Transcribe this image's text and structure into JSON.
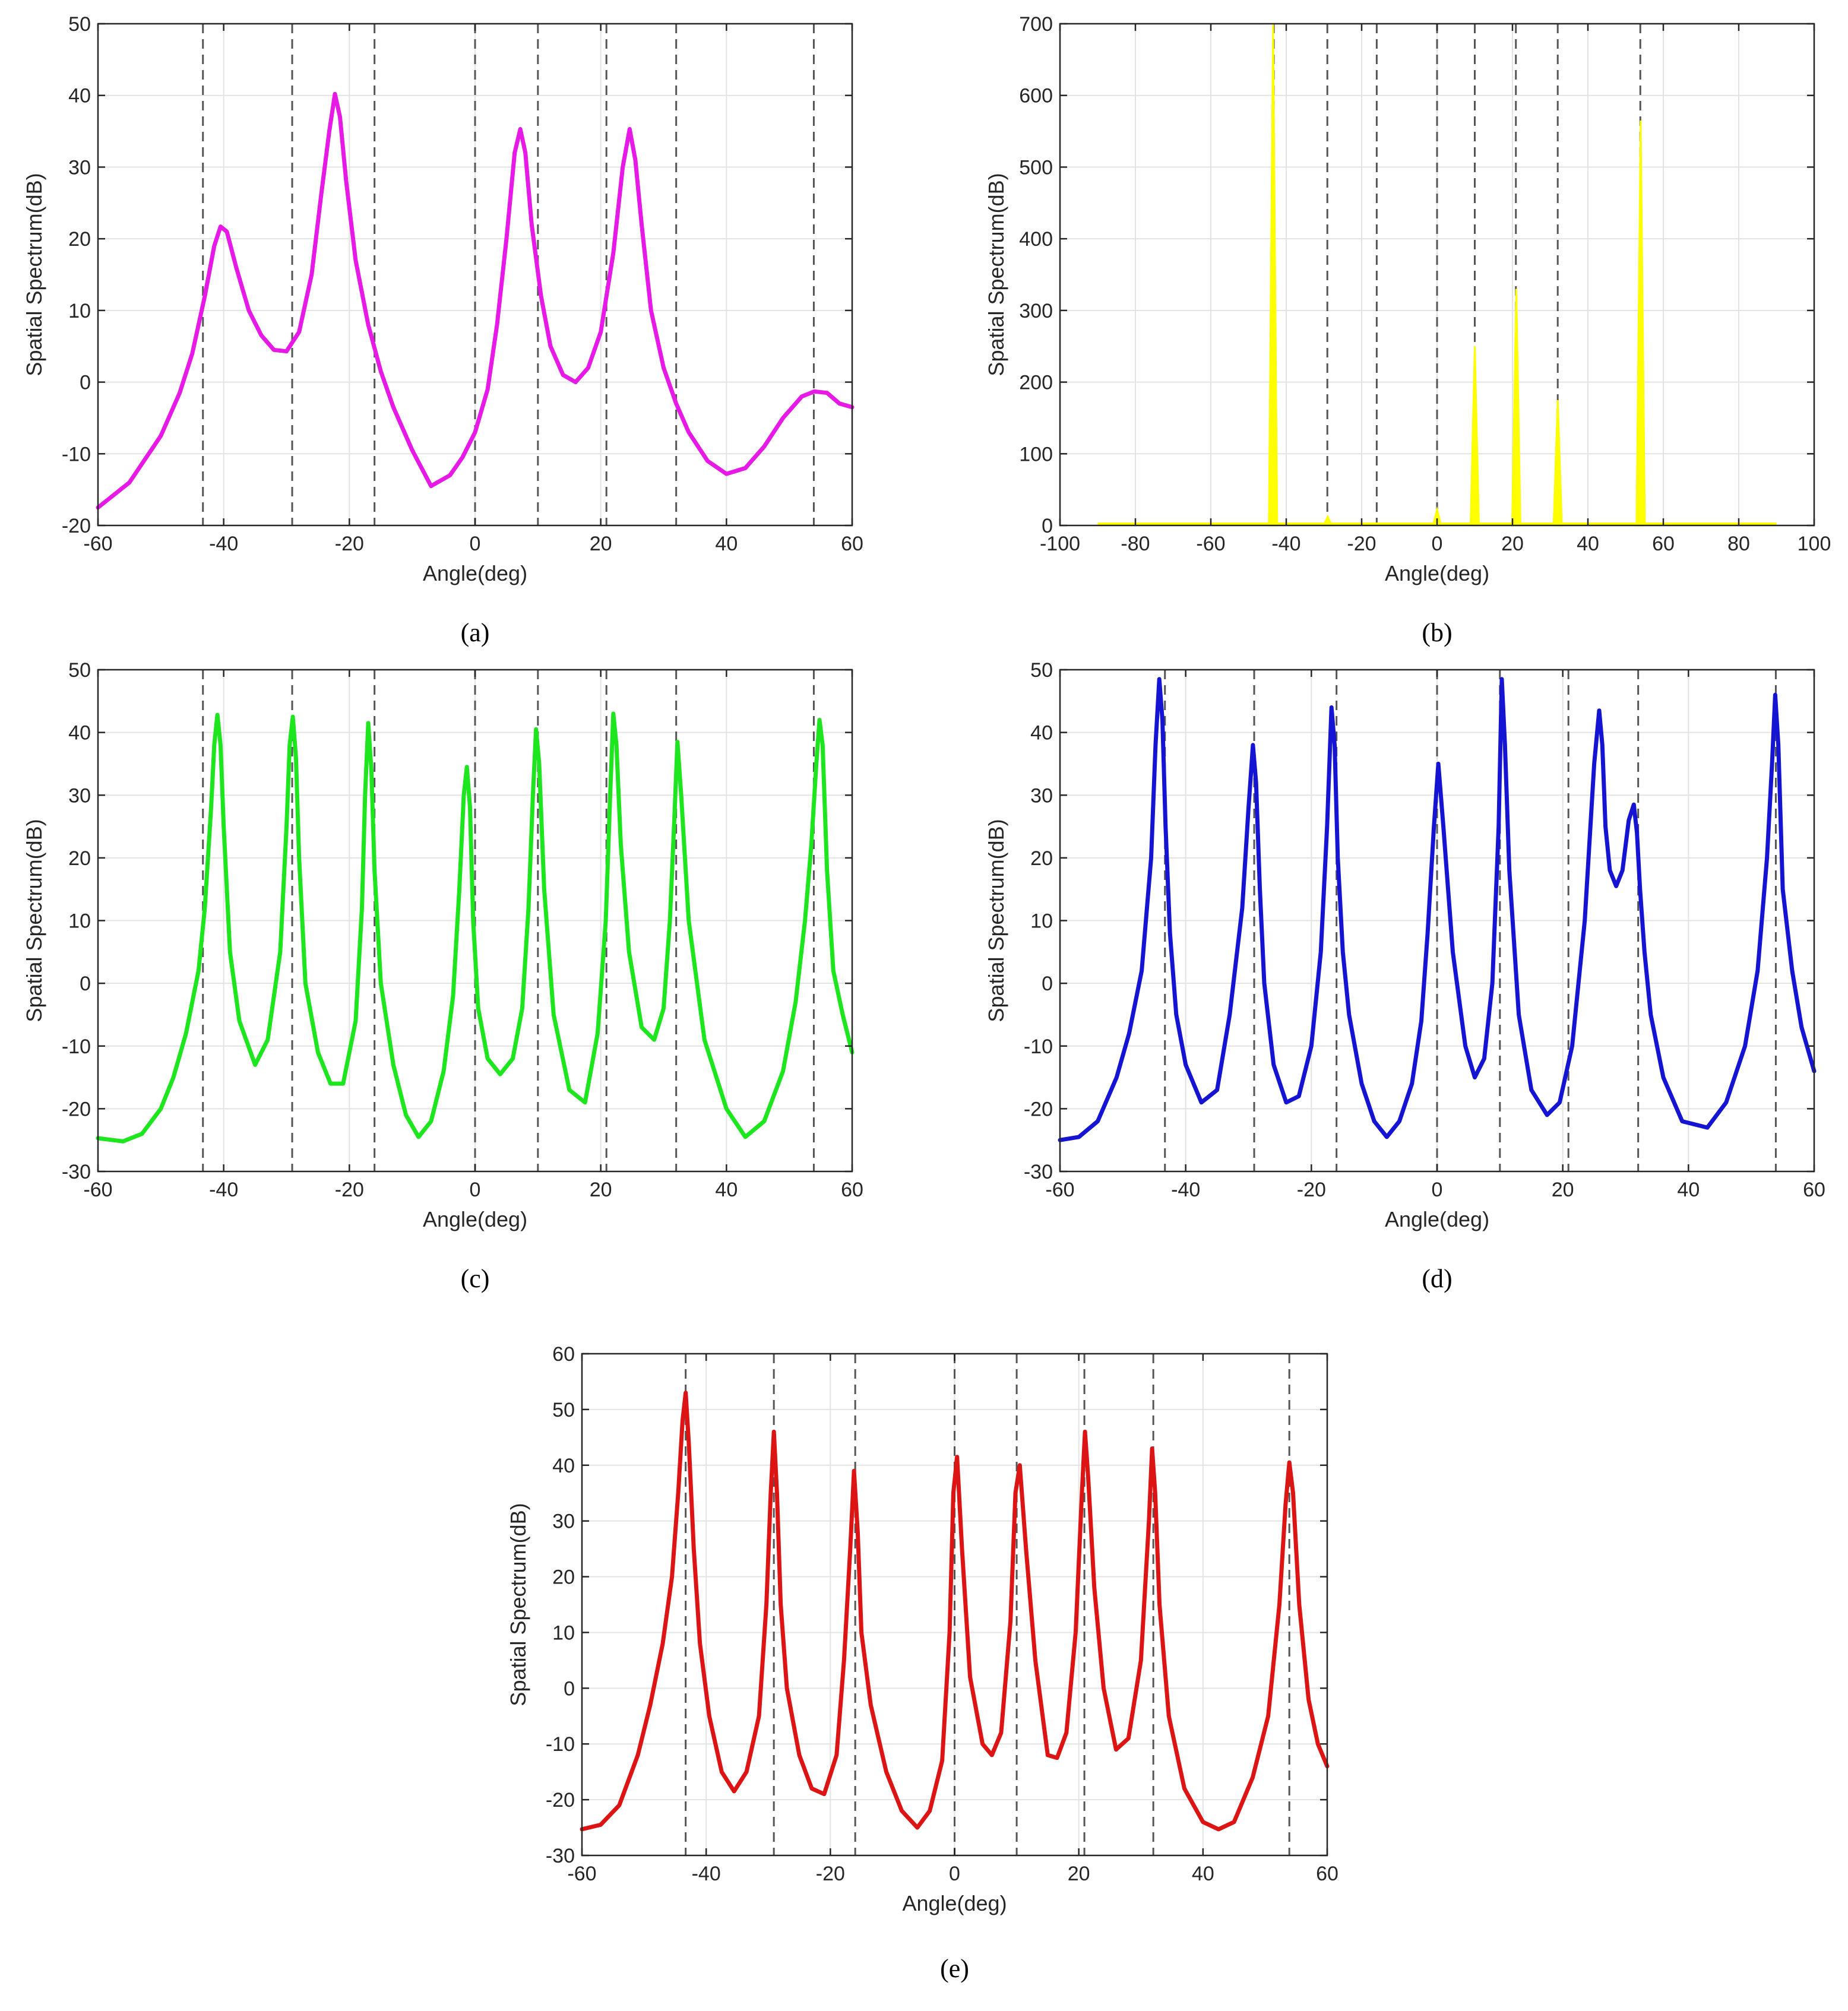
{
  "figure": {
    "panels": [
      {
        "id": "a",
        "caption": "(a)",
        "chart_data": {
          "type": "line",
          "color": "#e619e6",
          "xlabel": "Angle(deg)",
          "ylabel": "Spatial Spectrum(dB)",
          "xlim": [
            -60,
            60
          ],
          "ylim": [
            -20,
            50
          ],
          "xticks": [
            "-60",
            "-40",
            "-20",
            "0",
            "20",
            "40",
            "60"
          ],
          "yticks": [
            "-20",
            "-10",
            "0",
            "10",
            "20",
            "30",
            "40",
            "50"
          ],
          "true_angles": [
            -43.3,
            -29.1,
            -16,
            0,
            10,
            20.9,
            32,
            53.9
          ],
          "series": [
            {
              "name": "spectrum",
              "x": [
                -60,
                -55,
                -50,
                -47,
                -45,
                -43,
                -41.5,
                -40.5,
                -39.5,
                -38,
                -36,
                -34,
                -32,
                -30,
                -28,
                -26,
                -24.5,
                -23.2,
                -22.3,
                -21.5,
                -20.5,
                -19,
                -17,
                -15,
                -13,
                -10,
                -7,
                -4,
                -2,
                0,
                2,
                3.5,
                5,
                6.3,
                7.2,
                8,
                9,
                10.5,
                12,
                14,
                16,
                18,
                20,
                22,
                23.5,
                24.6,
                25.5,
                26.5,
                28,
                30,
                32,
                34,
                37,
                40,
                43,
                46,
                49,
                52,
                54,
                56,
                58,
                60
              ],
              "y": [
                -17.5,
                -14,
                -7.5,
                -1.5,
                4,
                12,
                19,
                21.7,
                21,
                16,
                10,
                6.5,
                4.5,
                4.3,
                7,
                15,
                26,
                35,
                40.2,
                37,
                28,
                17,
                8,
                1.5,
                -3.5,
                -9.5,
                -14.5,
                -13,
                -10.5,
                -7,
                -1,
                8,
                20,
                32,
                35.3,
                32,
                22,
                12,
                5,
                1,
                0,
                2,
                7,
                18,
                30,
                35.3,
                31,
                22,
                10,
                2,
                -3,
                -7,
                -11,
                -12.8,
                -12,
                -9,
                -5,
                -2,
                -1.3,
                -1.5,
                -3,
                -3.5
              ]
            }
          ]
        }
      },
      {
        "id": "b",
        "caption": "(b)",
        "chart_data": {
          "type": "line",
          "color": "#ffff00",
          "xlabel": "Angle(deg)",
          "ylabel": "Spatial Spectrum(dB)",
          "xlim": [
            -100,
            100
          ],
          "ylim": [
            0,
            700
          ],
          "xticks": [
            "-100",
            "-80",
            "-60",
            "-40",
            "-20",
            "0",
            "20",
            "40",
            "60",
            "80",
            "100"
          ],
          "yticks": [
            "0",
            "100",
            "200",
            "300",
            "400",
            "500",
            "600",
            "700"
          ],
          "true_angles": [
            -43.3,
            -29.1,
            -16,
            0,
            10,
            20.9,
            32,
            53.9
          ],
          "baseline_range": [
            -90,
            90
          ],
          "peaks": [
            {
              "x": -43.5,
              "y": 700
            },
            {
              "x": -29,
              "y": 12
            },
            {
              "x": 0,
              "y": 22
            },
            {
              "x": 10,
              "y": 250
            },
            {
              "x": 21,
              "y": 330
            },
            {
              "x": 32,
              "y": 175
            },
            {
              "x": 54,
              "y": 565
            }
          ]
        }
      },
      {
        "id": "c",
        "caption": "(c)",
        "chart_data": {
          "type": "line",
          "color": "#1ee61e",
          "xlabel": "Angle(deg)",
          "ylabel": "Spatial Spectrum(dB)",
          "xlim": [
            -60,
            60
          ],
          "ylim": [
            -30,
            50
          ],
          "xticks": [
            "-60",
            "-40",
            "-20",
            "0",
            "20",
            "40",
            "60"
          ],
          "yticks": [
            "-30",
            "-20",
            "-10",
            "0",
            "10",
            "20",
            "30",
            "40",
            "50"
          ],
          "true_angles": [
            -43.3,
            -29.1,
            -16,
            0,
            10,
            20.9,
            32,
            53.9
          ],
          "series": [
            {
              "name": "spectrum",
              "x": [
                -60,
                -56,
                -53,
                -50,
                -48,
                -46,
                -44,
                -43,
                -42,
                -41.5,
                -41,
                -40.5,
                -40,
                -39,
                -37.5,
                -35,
                -33,
                -31,
                -30,
                -29.5,
                -29,
                -28.5,
                -28,
                -27,
                -25,
                -23,
                -21,
                -19,
                -18,
                -17.5,
                -17,
                -16.5,
                -16,
                -15,
                -13,
                -11,
                -9,
                -7,
                -5,
                -3.5,
                -2.5,
                -1.8,
                -1.3,
                -0.8,
                -0.3,
                0.5,
                2,
                4,
                6,
                7.5,
                8.5,
                9.2,
                9.7,
                10.2,
                11,
                12.5,
                15,
                17.5,
                19.5,
                20.8,
                21.5,
                22,
                22.5,
                23.2,
                24.5,
                26.5,
                28.5,
                30,
                31,
                31.7,
                32.2,
                32.8,
                34,
                36.5,
                40,
                43,
                46,
                49,
                51,
                52.5,
                53.5,
                54.3,
                54.8,
                55.3,
                56,
                57,
                58.5,
                60
              ],
              "y": [
                -24.7,
                -25.2,
                -24,
                -20,
                -15,
                -8,
                2,
                12,
                28,
                38,
                42.8,
                38,
                25,
                5,
                -6,
                -13,
                -9,
                5,
                25,
                38,
                42.5,
                36,
                20,
                0,
                -11,
                -16,
                -16,
                -6,
                12,
                30,
                41.5,
                34,
                18,
                0,
                -13,
                -21,
                -24.5,
                -22,
                -14,
                -2,
                15,
                30,
                34.5,
                28,
                10,
                -4,
                -12,
                -14.5,
                -12,
                -4,
                12,
                30,
                40.5,
                35,
                15,
                -5,
                -17,
                -19,
                -8,
                10,
                30,
                43,
                38,
                22,
                5,
                -7,
                -9,
                -4,
                10,
                26,
                38.5,
                30,
                10,
                -9,
                -20,
                -24.5,
                -22,
                -14,
                -3,
                10,
                22,
                35,
                42,
                38,
                18,
                2,
                -5,
                -11
              ]
            }
          ]
        }
      },
      {
        "id": "d",
        "caption": "(d)",
        "chart_data": {
          "type": "line",
          "color": "#1414d2",
          "xlabel": "Angle(deg)",
          "ylabel": "Spatial Spectrum(dB)",
          "xlim": [
            -60,
            60
          ],
          "ylim": [
            -30,
            50
          ],
          "xticks": [
            "-60",
            "-40",
            "-20",
            "0",
            "20",
            "40",
            "60"
          ],
          "yticks": [
            "-30",
            "-20",
            "-10",
            "0",
            "10",
            "20",
            "30",
            "40",
            "50"
          ],
          "true_angles": [
            -43.3,
            -29.1,
            -16,
            0,
            10,
            20.9,
            32,
            53.9
          ],
          "series": [
            {
              "name": "spectrum",
              "x": [
                -60,
                -57,
                -54,
                -51,
                -49,
                -47,
                -45.5,
                -44.8,
                -44.2,
                -43.7,
                -43.2,
                -42.5,
                -41.5,
                -40,
                -37.5,
                -35,
                -33,
                -31,
                -30,
                -29.3,
                -28.8,
                -28.2,
                -27.5,
                -26,
                -24,
                -22,
                -20,
                -18.5,
                -17.5,
                -16.8,
                -16.3,
                -15.8,
                -15,
                -14,
                -12,
                -10,
                -8,
                -6,
                -4,
                -2.5,
                -1.5,
                -0.5,
                0.2,
                1,
                2.5,
                4.5,
                6,
                7.5,
                8.8,
                9.8,
                10.3,
                10.8,
                11.5,
                13,
                15,
                17.5,
                19.5,
                21.5,
                23.5,
                25,
                25.8,
                26.3,
                26.8,
                27.5,
                28.5,
                29.5,
                30.5,
                31.3,
                31.8,
                32.3,
                33,
                34,
                36,
                39,
                43,
                46,
                49,
                51,
                52.5,
                53.3,
                53.8,
                54.3,
                55,
                56.5,
                58,
                60
              ],
              "y": [
                -25,
                -24.5,
                -22,
                -15,
                -8,
                2,
                20,
                38,
                48.5,
                42,
                25,
                8,
                -5,
                -13,
                -19,
                -17,
                -5,
                12,
                28,
                38,
                32,
                15,
                0,
                -13,
                -19,
                -18,
                -10,
                5,
                25,
                44,
                38,
                20,
                5,
                -5,
                -16,
                -22,
                -24.5,
                -22,
                -16,
                -6,
                8,
                25,
                35,
                25,
                5,
                -10,
                -15,
                -12,
                0,
                25,
                48.5,
                38,
                18,
                -5,
                -17,
                -21,
                -19,
                -10,
                10,
                35,
                43.5,
                38,
                25,
                18,
                15.5,
                18,
                26,
                28.5,
                24,
                15,
                5,
                -5,
                -15,
                -22,
                -23,
                -19,
                -10,
                2,
                20,
                35,
                46,
                38,
                15,
                2,
                -7,
                -14
              ]
            }
          ]
        }
      },
      {
        "id": "e",
        "caption": "(e)",
        "chart_data": {
          "type": "line",
          "color": "#dc1414",
          "xlabel": "Angle(deg)",
          "ylabel": "Spatial Spectrum(dB)",
          "xlim": [
            -60,
            60
          ],
          "ylim": [
            -30,
            60
          ],
          "xticks": [
            "-60",
            "-40",
            "-20",
            "0",
            "20",
            "40",
            "60"
          ],
          "yticks": [
            "-30",
            "-20",
            "-10",
            "0",
            "10",
            "20",
            "30",
            "40",
            "50",
            "60"
          ],
          "true_angles": [
            -43.3,
            -29.1,
            -16,
            0,
            10,
            20.9,
            32,
            53.9
          ],
          "series": [
            {
              "name": "spectrum",
              "x": [
                -60,
                -57,
                -54,
                -51,
                -49,
                -47,
                -45.5,
                -44.5,
                -43.8,
                -43.3,
                -42.8,
                -42,
                -41,
                -39.5,
                -37.5,
                -35.5,
                -33.5,
                -31.5,
                -30.3,
                -29.6,
                -29.1,
                -28.6,
                -28,
                -27,
                -25,
                -23,
                -21,
                -19,
                -17.8,
                -16.8,
                -16.2,
                -15.6,
                -15,
                -13.5,
                -11,
                -8.5,
                -6,
                -4,
                -2,
                -0.8,
                -0.2,
                0.4,
                1.2,
                2.5,
                4.5,
                6,
                7.5,
                9,
                9.8,
                10.5,
                11.5,
                13,
                15,
                16.5,
                18,
                19.5,
                20.5,
                21,
                21.5,
                22.5,
                24,
                26,
                28,
                30,
                31.3,
                31.8,
                32.3,
                33,
                34.5,
                37,
                40,
                42.5,
                45,
                48,
                50.5,
                52.3,
                53.3,
                53.9,
                54.5,
                55.5,
                57,
                58.5,
                60
              ],
              "y": [
                -25.3,
                -24.5,
                -21,
                -12,
                -3,
                8,
                20,
                35,
                48,
                53,
                44,
                25,
                8,
                -5,
                -15,
                -18.5,
                -15,
                -5,
                15,
                35,
                46,
                35,
                15,
                0,
                -12,
                -18,
                -19,
                -12,
                5,
                25,
                39,
                28,
                10,
                -3,
                -15,
                -22,
                -25,
                -22,
                -13,
                10,
                35,
                41.5,
                25,
                2,
                -10,
                -12,
                -8,
                12,
                35,
                40,
                25,
                5,
                -12,
                -12.5,
                -8,
                10,
                35,
                46,
                38,
                18,
                0,
                -11,
                -9,
                5,
                30,
                43,
                35,
                15,
                -5,
                -18,
                -24,
                -25.3,
                -24,
                -16,
                -5,
                15,
                33,
                40.5,
                35,
                15,
                -2,
                -10,
                -14
              ]
            }
          ]
        }
      }
    ]
  }
}
